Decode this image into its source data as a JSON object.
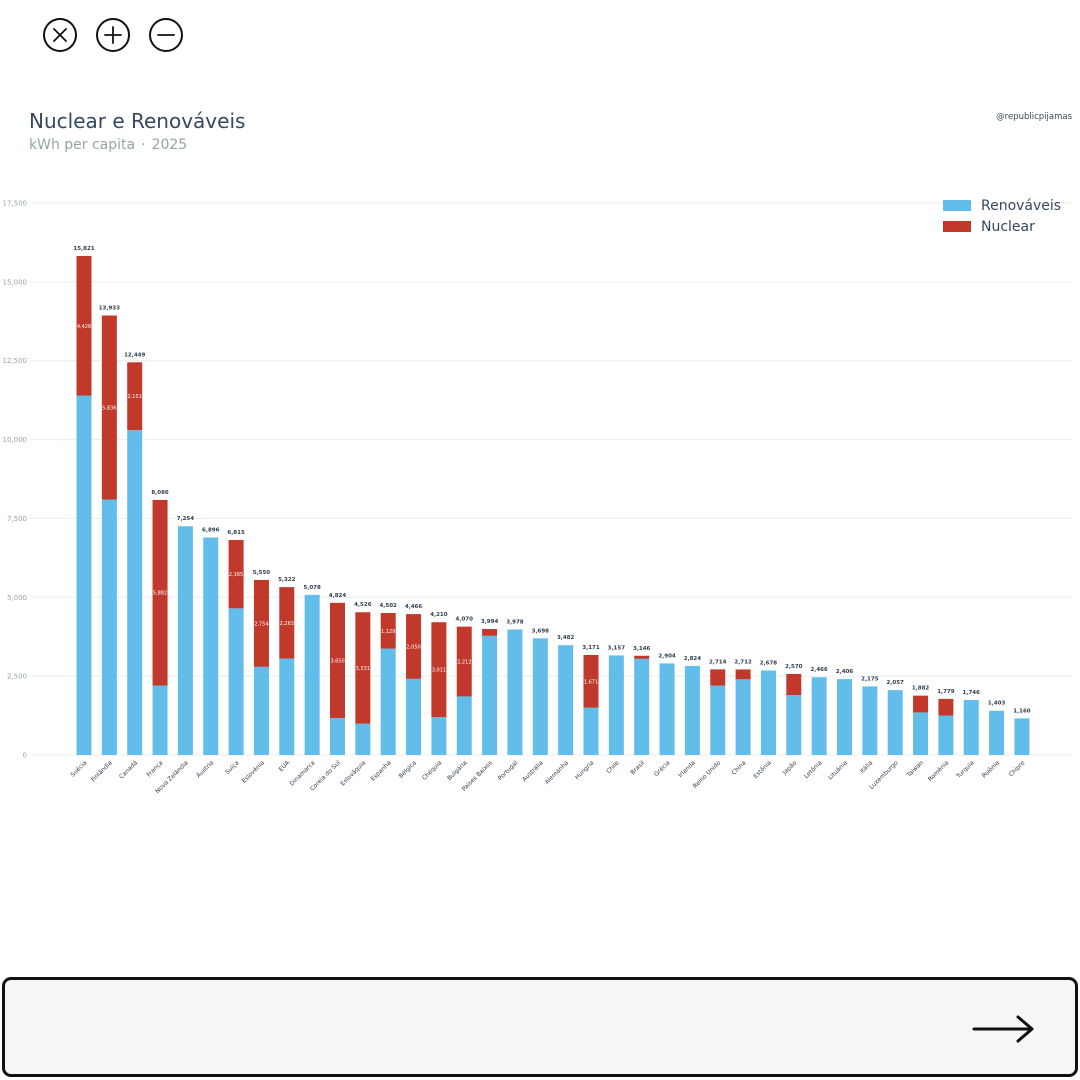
{
  "toolbar": {
    "icons": [
      "close-icon",
      "zoom-in-icon",
      "zoom-out-icon"
    ]
  },
  "colors": {
    "renewables": "#63bdeb",
    "nuclear": "#c0392b",
    "grid": "#ececec",
    "axis_text": "#95a5a6",
    "label_text": "#2c3e50"
  },
  "header": {
    "credit": "@republicpijamas"
  },
  "bottom_bar": {
    "icon": "right-arrow-icon"
  },
  "chart_data": {
    "type": "bar",
    "stacked": true,
    "title": "Nuclear e Renováveis",
    "subtitle_unit": "kWh per capita",
    "subtitle_separator": "·",
    "subtitle_year": "2025",
    "ylim": [
      0,
      17500
    ],
    "yticks": [
      0,
      2500,
      5000,
      7500,
      10000,
      12500,
      15000,
      17500
    ],
    "ytick_labels": [
      "0",
      "2,500",
      "5,000",
      "7,500",
      "10,000",
      "12,500",
      "15,000",
      "17,500"
    ],
    "grid": true,
    "legend_position": "top-right",
    "categories": [
      "Suécia",
      "Finlândia",
      "Canadá",
      "França",
      "Nova Zelândia",
      "Áustria",
      "Suíça",
      "Eslovênia",
      "EUA",
      "Dinamarca",
      "Coreia do Sul",
      "Eslováquia",
      "Espanha",
      "Bélgica",
      "Chéquia",
      "Bulgária",
      "Países Baixos",
      "Portugal",
      "Austrália",
      "Alemanha",
      "Hungria",
      "Chile",
      "Brasil",
      "Grécia",
      "Irlanda",
      "Reino Unido",
      "China",
      "Estônia",
      "Japão",
      "Letônia",
      "Lituânia",
      "Itália",
      "Luxemburgo",
      "Taiwan",
      "Romênia",
      "Turquia",
      "Polônia",
      "Chipre"
    ],
    "series": [
      {
        "name": "Renováveis",
        "values": [
          11395,
          8097,
          10298,
          2204,
          7254,
          6896,
          4650,
          2796,
          3059,
          5078,
          1174,
          995,
          3373,
          2416,
          1199,
          1858,
          3780,
          3978,
          3698,
          3482,
          1500,
          3157,
          3050,
          2904,
          2824,
          2200,
          2400,
          2678,
          1900,
          2466,
          2406,
          2175,
          2057,
          1350,
          1250,
          1746,
          1403,
          1160
        ]
      },
      {
        "name": "Nuclear",
        "values": [
          4426,
          5836,
          2151,
          5882,
          0,
          0,
          2165,
          2754,
          2263,
          0,
          3650,
          3531,
          1129,
          2050,
          3011,
          2212,
          214,
          0,
          0,
          0,
          1671,
          0,
          96,
          0,
          0,
          514,
          312,
          0,
          670,
          0,
          0,
          0,
          0,
          532,
          529,
          0,
          0,
          0
        ]
      }
    ],
    "totals": [
      15821,
      13933,
      12449,
      8086,
      7254,
      6896,
      6815,
      5550,
      5322,
      5078,
      4824,
      4526,
      4502,
      4466,
      4210,
      4070,
      3994,
      3978,
      3698,
      3482,
      3171,
      3157,
      3146,
      2904,
      2824,
      2714,
      2712,
      2678,
      2570,
      2466,
      2406,
      2175,
      2057,
      1882,
      1779,
      1746,
      1403,
      1160
    ],
    "total_labels": [
      "15,821",
      "13,933",
      "12,449",
      "8,086",
      "7,254",
      "6,896",
      "6,815",
      "5,550",
      "5,322",
      "5,078",
      "4,824",
      "4,526",
      "4,502",
      "4,466",
      "4,210",
      "4,070",
      "3,994",
      "3,978",
      "3,698",
      "3,482",
      "3,171",
      "3,157",
      "3,146",
      "2,904",
      "2,824",
      "2,714",
      "2,712",
      "2,678",
      "2,570",
      "2,466",
      "2,406",
      "2,175",
      "2,057",
      "1,882",
      "1,779",
      "1,746",
      "1,403",
      "1,160"
    ],
    "segment_labels": [
      "4,426",
      "5,836",
      "2,151",
      "5,882",
      "",
      "",
      "2,165",
      "2,754",
      "2,263",
      "",
      "3,650",
      "3,531",
      "1,129",
      "2,050",
      "3,011",
      "2,212",
      "",
      "",
      "",
      "",
      "1,671",
      "",
      "",
      "",
      "",
      "",
      "",
      "",
      "",
      "",
      "",
      "",
      "",
      "",
      "",
      "",
      "",
      ""
    ]
  }
}
